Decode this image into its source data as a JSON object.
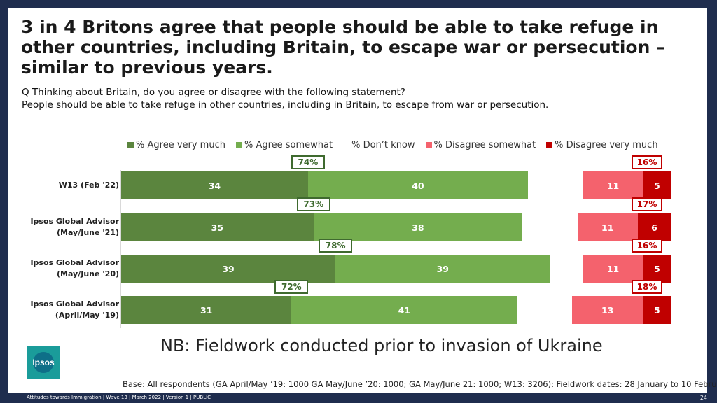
{
  "title": "3 in 4 Britons agree that people should be able to take refuge in other countries, including Britain, to escape war or persecution – similar to previous years.",
  "question_line1": "Q Thinking about Britain, do you agree or disagree with the following statement?",
  "question_line2": "People should be able to take refuge in other countries, including in Britain, to escape from war or persecution.",
  "note": "NB: Fieldwork conducted prior to invasion of Ukraine",
  "base": "Base: All respondents (GA April/May ’19: 1000 GA May/June ’20: 1000; GA May/June 21: 1000; W13: 3206): Fieldwork dates: 28 January to 10 February 2022",
  "footer": "Attitudes towards Immigration | Wave 13 | March 2022 | Version 1 | PUBLIC",
  "page_number": "24",
  "logo_text": "Ipsos",
  "colors": {
    "agree_very_much": "#5b853e",
    "agree_somewhat": "#74ad4e",
    "dont_know": "#ffffff",
    "disagree_somewhat": "#f4626d",
    "disagree_very_much": "#c00000",
    "agree_net_border": "#3f6a2f",
    "disagree_net_border": "#c00000",
    "background": "#1f2d4e"
  },
  "chart_data": {
    "type": "bar",
    "orientation": "horizontal",
    "stacked": true,
    "categories": [
      "W13 (Feb '22)",
      "Ipsos Global Advisor (May/June '21)",
      "Ipsos Global Advisor (May/June '20)",
      "Ipsos Global Advisor (April/May '19)"
    ],
    "category_lines": [
      [
        "W13 (Feb '22)"
      ],
      [
        "Ipsos Global Advisor",
        "(May/June '21)"
      ],
      [
        "Ipsos Global Advisor",
        "(May/June '20)"
      ],
      [
        "Ipsos Global Advisor",
        "(April/May '19)"
      ]
    ],
    "series": [
      {
        "name": "% Agree very much",
        "values": [
          34,
          35,
          39,
          31
        ]
      },
      {
        "name": "% Agree somewhat",
        "values": [
          40,
          38,
          39,
          41
        ]
      },
      {
        "name": "% Don’t know",
        "values": [
          10,
          10,
          6,
          10
        ]
      },
      {
        "name": "% Disagree somewhat",
        "values": [
          11,
          11,
          11,
          13
        ]
      },
      {
        "name": "% Disagree very much",
        "values": [
          5,
          6,
          5,
          5
        ]
      }
    ],
    "net_agree": [
      "74%",
      "73%",
      "78%",
      "72%"
    ],
    "net_disagree": [
      "16%",
      "17%",
      "16%",
      "18%"
    ],
    "legend_position": "top",
    "xlim": [
      0,
      100
    ]
  }
}
